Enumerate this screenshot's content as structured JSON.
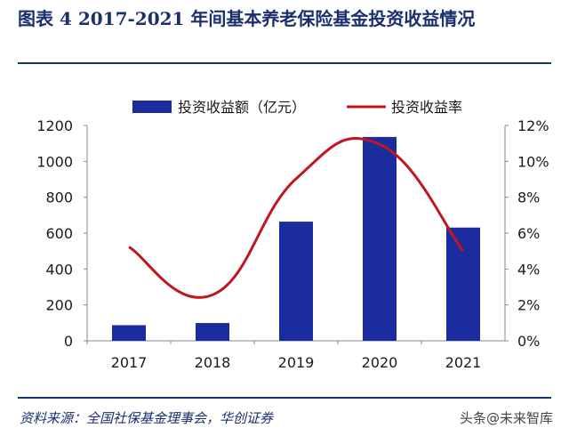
{
  "header": {
    "title": "图表 4   2017-2021 年间基本养老保险基金投资收益情况"
  },
  "footer": {
    "source": "资料来源：全国社保基金理事会，华创证券",
    "watermark": "头条@未来智库"
  },
  "chart_data": {
    "type": "bar",
    "categories": [
      "2017",
      "2018",
      "2019",
      "2020",
      "2021"
    ],
    "series": [
      {
        "name": "投资收益额（亿元）",
        "type": "bar",
        "axis": "left",
        "color": "#1a2c9e",
        "values": [
          87,
          99,
          664,
          1136,
          631
        ]
      },
      {
        "name": "投资收益率",
        "type": "line",
        "axis": "right",
        "color": "#c0161f",
        "values": [
          5.23,
          2.56,
          9.03,
          10.95,
          5.0
        ]
      }
    ],
    "ylim_left": [
      0,
      1200
    ],
    "yticks_left": [
      "0",
      "200",
      "400",
      "600",
      "800",
      "1000",
      "1200"
    ],
    "ylim_right": [
      0,
      12
    ],
    "yticks_right": [
      "0%",
      "2%",
      "4%",
      "6%",
      "8%",
      "10%",
      "12%"
    ],
    "legend_position": "top",
    "grid": false
  }
}
